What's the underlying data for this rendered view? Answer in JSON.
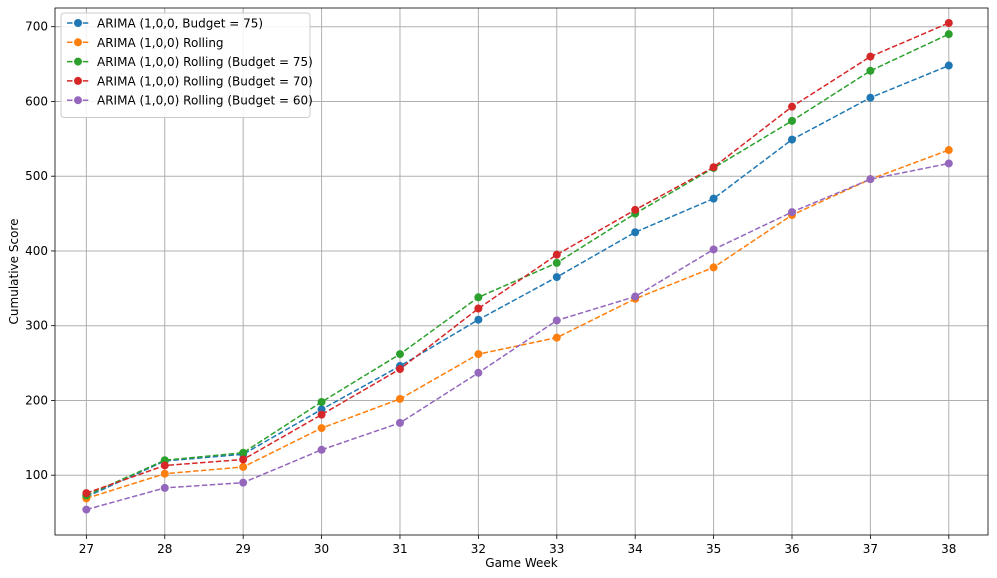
{
  "chart_data": {
    "type": "line",
    "title": "",
    "xlabel": "Game Week",
    "ylabel": "Cumulative Score",
    "x": [
      27,
      28,
      29,
      30,
      31,
      32,
      33,
      34,
      35,
      36,
      37,
      38
    ],
    "xlim": [
      26.6,
      38.5
    ],
    "ylim": [
      20,
      725
    ],
    "yticks": [
      100,
      200,
      300,
      400,
      500,
      600,
      700
    ],
    "grid": true,
    "legend_position": "top-left",
    "line_style": "dashed",
    "marker": "circle",
    "series": [
      {
        "name": "ARIMA (1,0,0, Budget = 75)",
        "color": "#1f77b4",
        "values": [
          71,
          119,
          128,
          188,
          246,
          308,
          365,
          425,
          470,
          549,
          605,
          648
        ]
      },
      {
        "name": "ARIMA (1,0,0) Rolling",
        "color": "#ff7f0e",
        "values": [
          69,
          102,
          111,
          163,
          202,
          262,
          284,
          336,
          378,
          448,
          496,
          535
        ]
      },
      {
        "name": "ARIMA (1,0,0) Rolling (Budget = 75)",
        "color": "#2ca02c",
        "values": [
          73,
          120,
          130,
          198,
          262,
          338,
          384,
          450,
          511,
          574,
          641,
          690
        ]
      },
      {
        "name": "ARIMA (1,0,0) Rolling (Budget = 70)",
        "color": "#d62728",
        "values": [
          76,
          113,
          121,
          181,
          242,
          323,
          395,
          455,
          512,
          593,
          660,
          705
        ]
      },
      {
        "name": "ARIMA (1,0,0) Rolling (Budget = 60)",
        "color": "#9467bd",
        "values": [
          54,
          83,
          90,
          134,
          170,
          237,
          307,
          339,
          402,
          452,
          496,
          517
        ]
      }
    ]
  }
}
